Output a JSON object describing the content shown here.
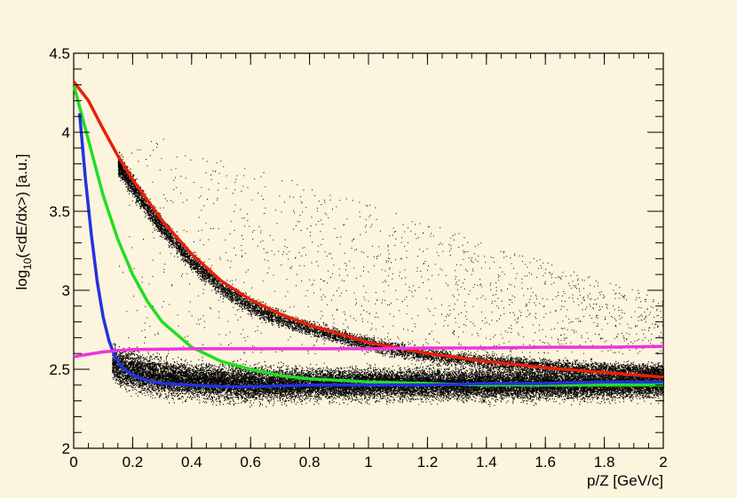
{
  "chart_data": {
    "type": "scatter",
    "title": "",
    "xlabel": "p/Z [GeV/c]",
    "ylabel_parts": [
      "log",
      "10",
      "(<dE/dx>) [a.u.]"
    ],
    "xlim": [
      0,
      2
    ],
    "ylim": [
      2,
      4.5
    ],
    "x_ticks": [
      0,
      0.2,
      0.4,
      0.6,
      0.8,
      1,
      1.2,
      1.4,
      1.6,
      1.8,
      2
    ],
    "x_tick_labels": [
      "0",
      "0.2",
      "0.4",
      "0.6",
      "0.8",
      "1",
      "1.2",
      "1.4",
      "1.6",
      "1.8",
      "2"
    ],
    "y_ticks": [
      2,
      2.5,
      3,
      3.5,
      4,
      4.5
    ],
    "y_tick_labels": [
      "2",
      "2.5",
      "3",
      "3.5",
      "4",
      "4.5"
    ],
    "grid": false,
    "colors": {
      "background": "#fdf4dd",
      "red": "#e8200a",
      "green": "#22dd22",
      "blue": "#2233dd",
      "magenta": "#ee33dd",
      "points": "#000000"
    },
    "bands": [
      {
        "x": [
          0.13,
          0.15,
          0.2,
          0.25,
          0.3,
          0.4,
          0.5,
          0.6,
          0.8,
          1.0,
          1.2,
          1.4,
          1.6,
          1.8,
          2.0
        ],
        "center": [
          2.55,
          2.52,
          2.49,
          2.47,
          2.45,
          2.43,
          2.42,
          2.41,
          2.41,
          2.41,
          2.41,
          2.41,
          2.41,
          2.41,
          2.42
        ],
        "width": [
          0.09,
          0.1,
          0.1,
          0.1,
          0.1,
          0.09,
          0.09,
          0.09,
          0.08,
          0.08,
          0.08,
          0.08,
          0.08,
          0.08,
          0.08
        ],
        "density": 26000
      },
      {
        "x": [
          0.15,
          0.2,
          0.25,
          0.3,
          0.4,
          0.5,
          0.6,
          0.7,
          0.8,
          1.0,
          1.2,
          1.4,
          1.6,
          1.8,
          2.0
        ],
        "center": [
          3.8,
          3.66,
          3.52,
          3.4,
          3.18,
          3.02,
          2.9,
          2.82,
          2.76,
          2.66,
          2.59,
          2.55,
          2.52,
          2.5,
          2.49
        ],
        "width": [
          0.06,
          0.06,
          0.05,
          0.05,
          0.05,
          0.045,
          0.045,
          0.04,
          0.04,
          0.04,
          0.04,
          0.04,
          0.04,
          0.04,
          0.04
        ],
        "density": 9000
      }
    ],
    "scatter_halo": {
      "x": [
        0.15,
        2.0
      ],
      "y": [
        2.6,
        4.05
      ],
      "count": 1400
    },
    "series": [
      {
        "color": "red",
        "x": [
          0,
          0.05,
          0.1,
          0.15,
          0.2,
          0.3,
          0.4,
          0.5,
          0.6,
          0.7,
          0.8,
          1.0,
          1.2,
          1.4,
          1.6,
          1.8,
          2.0
        ],
        "values": [
          4.32,
          4.2,
          4.02,
          3.85,
          3.7,
          3.44,
          3.23,
          3.06,
          2.94,
          2.85,
          2.78,
          2.67,
          2.6,
          2.55,
          2.51,
          2.48,
          2.45
        ]
      },
      {
        "color": "green",
        "x": [
          0,
          0.05,
          0.1,
          0.15,
          0.2,
          0.25,
          0.3,
          0.4,
          0.5,
          0.6,
          0.7,
          0.8,
          1.0,
          1.2,
          1.4,
          1.6,
          1.8,
          2.0
        ],
        "values": [
          4.3,
          3.95,
          3.6,
          3.32,
          3.1,
          2.93,
          2.8,
          2.64,
          2.55,
          2.5,
          2.46,
          2.44,
          2.42,
          2.41,
          2.4,
          2.4,
          2.4,
          2.4
        ]
      },
      {
        "color": "blue",
        "x": [
          0.02,
          0.04,
          0.06,
          0.08,
          0.1,
          0.12,
          0.14,
          0.16,
          0.2,
          0.25,
          0.3,
          0.4,
          0.5,
          0.6,
          0.8,
          1.0,
          1.2,
          1.4,
          1.6,
          1.8,
          2.0
        ],
        "values": [
          4.12,
          3.7,
          3.35,
          3.05,
          2.83,
          2.68,
          2.58,
          2.52,
          2.46,
          2.43,
          2.41,
          2.4,
          2.39,
          2.39,
          2.4,
          2.4,
          2.4,
          2.41,
          2.41,
          2.42,
          2.42
        ]
      },
      {
        "color": "magenta",
        "x": [
          0,
          0.1,
          0.2,
          0.4,
          0.6,
          0.8,
          1.0,
          1.2,
          1.4,
          1.6,
          1.8,
          2.0
        ],
        "values": [
          2.58,
          2.61,
          2.625,
          2.63,
          2.63,
          2.63,
          2.63,
          2.635,
          2.635,
          2.64,
          2.64,
          2.645
        ]
      }
    ]
  }
}
